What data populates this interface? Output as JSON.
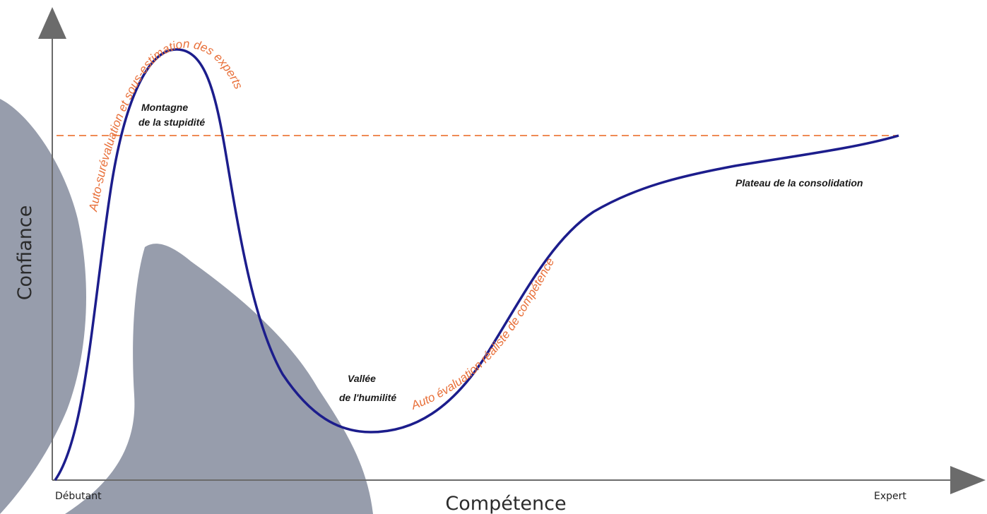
{
  "axes": {
    "x_label": "Compétence",
    "y_label": "Confiance",
    "x_start": "Débutant",
    "x_end": "Expert"
  },
  "stages": {
    "mountain_line1": "Montagne",
    "mountain_line2": "de la stupidité",
    "valley_line1": "Vallée",
    "valley_line2": "de l'humilité",
    "plateau": "Plateau de la consolidation"
  },
  "curve_annotations": {
    "rising": "Auto-surévaluation et sous-estimation des experts",
    "realistic": "Auto évaluation réaliste de compétence"
  },
  "colors": {
    "curve": "#1c1d8c",
    "reference_line": "#ef8a55",
    "annotation": "#e8703a",
    "axis": "#6b6b6b",
    "overlay": "#7d8597"
  }
}
